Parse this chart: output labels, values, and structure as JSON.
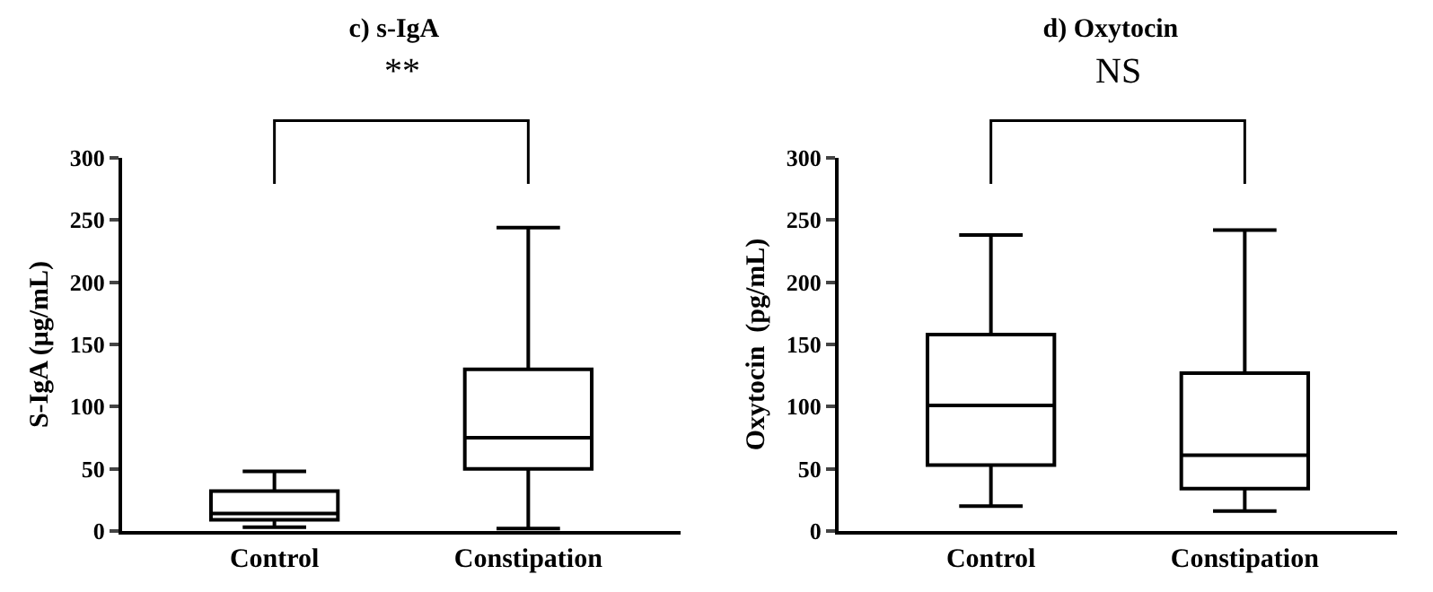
{
  "chart_data": [
    {
      "type": "box",
      "title": "c) s-IgA",
      "ylabel": "S-IgA (μg/mL)",
      "categories": [
        "Control",
        "Constipation"
      ],
      "boxes": [
        {
          "low": 3,
          "q1": 9,
          "median": 14,
          "q3": 32,
          "high": 48
        },
        {
          "low": 2,
          "q1": 50,
          "median": 75,
          "q3": 130,
          "high": 244
        }
      ],
      "ylim": [
        0,
        300
      ],
      "yticks": [
        0,
        50,
        100,
        150,
        200,
        250,
        300
      ],
      "annotations": [
        "**"
      ]
    },
    {
      "type": "box",
      "title": "d) Oxytocin",
      "ylabel": "Oxytocin  (pg/mL)",
      "categories": [
        "Control",
        "Constipation"
      ],
      "boxes": [
        {
          "low": 20,
          "q1": 53,
          "median": 101,
          "q3": 158,
          "high": 238
        },
        {
          "low": 16,
          "q1": 34,
          "median": 61,
          "q3": 127,
          "high": 242
        }
      ],
      "ylim": [
        0,
        300
      ],
      "yticks": [
        0,
        50,
        100,
        150,
        200,
        250,
        300
      ],
      "annotations": [
        "NS"
      ]
    }
  ]
}
